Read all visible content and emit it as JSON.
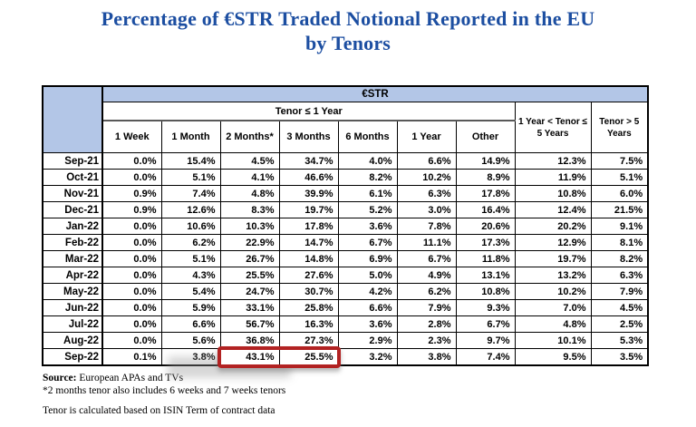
{
  "title": {
    "line1": "Percentage of €STR Traded Notional Reported in the EU",
    "line2": "by Tenors"
  },
  "chart_data": {
    "type": "table",
    "title": "Percentage of €STR Traded Notional Reported in the EU by Tenors",
    "header": {
      "group": "€STR",
      "subgroup": "Tenor ≤ 1 Year",
      "sub_columns": [
        "1 Week",
        "1 Month",
        "2 Months*",
        "3 Months",
        "6 Months",
        "1 Year",
        "Other"
      ],
      "tail_columns": [
        "1 Year < Tenor ≤ 5 Years",
        "Tenor > 5 Years"
      ]
    },
    "rows": [
      {
        "label": "Sep-21",
        "values": [
          "0.0%",
          "15.4%",
          "4.5%",
          "34.7%",
          "4.0%",
          "6.6%",
          "14.9%",
          "12.3%",
          "7.5%"
        ]
      },
      {
        "label": "Oct-21",
        "values": [
          "0.0%",
          "5.1%",
          "4.1%",
          "46.6%",
          "8.2%",
          "10.2%",
          "8.9%",
          "11.9%",
          "5.1%"
        ]
      },
      {
        "label": "Nov-21",
        "values": [
          "0.9%",
          "7.4%",
          "4.8%",
          "39.9%",
          "6.1%",
          "6.3%",
          "17.8%",
          "10.8%",
          "6.0%"
        ]
      },
      {
        "label": "Dec-21",
        "values": [
          "0.9%",
          "12.6%",
          "8.3%",
          "19.7%",
          "5.2%",
          "3.0%",
          "16.4%",
          "12.4%",
          "21.5%"
        ]
      },
      {
        "label": "Jan-22",
        "values": [
          "0.0%",
          "10.6%",
          "10.3%",
          "17.8%",
          "3.6%",
          "7.8%",
          "20.6%",
          "20.2%",
          "9.1%"
        ]
      },
      {
        "label": "Feb-22",
        "values": [
          "0.0%",
          "6.2%",
          "22.9%",
          "14.7%",
          "6.7%",
          "11.1%",
          "17.3%",
          "12.9%",
          "8.1%"
        ]
      },
      {
        "label": "Mar-22",
        "values": [
          "0.0%",
          "5.1%",
          "26.7%",
          "14.8%",
          "6.9%",
          "6.7%",
          "11.8%",
          "19.7%",
          "8.2%"
        ]
      },
      {
        "label": "Apr-22",
        "values": [
          "0.0%",
          "4.3%",
          "25.5%",
          "27.6%",
          "5.0%",
          "4.9%",
          "13.1%",
          "13.2%",
          "6.3%"
        ]
      },
      {
        "label": "May-22",
        "values": [
          "0.0%",
          "5.4%",
          "24.7%",
          "30.7%",
          "4.2%",
          "6.2%",
          "10.8%",
          "10.2%",
          "7.9%"
        ]
      },
      {
        "label": "Jun-22",
        "values": [
          "0.0%",
          "5.9%",
          "33.1%",
          "25.8%",
          "6.6%",
          "7.9%",
          "9.3%",
          "7.0%",
          "4.5%"
        ]
      },
      {
        "label": "Jul-22",
        "values": [
          "0.0%",
          "6.6%",
          "56.7%",
          "16.3%",
          "3.6%",
          "2.8%",
          "6.7%",
          "4.8%",
          "2.5%"
        ]
      },
      {
        "label": "Aug-22",
        "values": [
          "0.0%",
          "5.6%",
          "36.8%",
          "27.3%",
          "2.9%",
          "2.3%",
          "9.7%",
          "10.1%",
          "5.3%"
        ]
      },
      {
        "label": "Sep-22",
        "values": [
          "0.1%",
          "3.8%",
          "43.1%",
          "25.5%",
          "3.2%",
          "3.8%",
          "7.4%",
          "9.5%",
          "3.5%"
        ]
      }
    ]
  },
  "highlight": {
    "shape": "red-box",
    "row_label": "Sep-22",
    "row_index": 12,
    "value_col_indexes": [
      2,
      3
    ],
    "highlighted_columns": [
      "2 Months*",
      "3 Months"
    ],
    "highlighted_values": [
      "43.1%",
      "25.5%"
    ]
  },
  "footnotes": {
    "source_label": "Source:",
    "source_text": "European APAs and TVs",
    "asterisk_note": "*2 months tenor also includes 6 weeks and 7 weeks tenors",
    "tenor_note": "Tenor is calculated based on ISIN Term of contract data"
  },
  "colors": {
    "header_fill": "#B3C6E7",
    "title_text": "#1C4EA1",
    "highlight_border": "#B22222"
  }
}
